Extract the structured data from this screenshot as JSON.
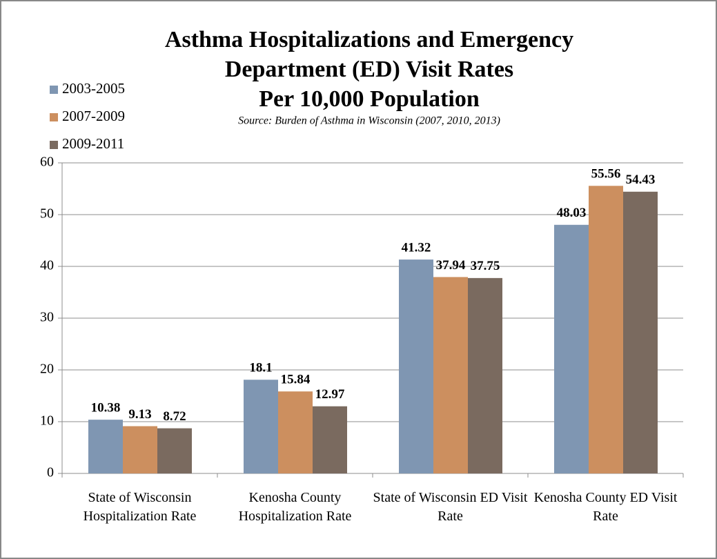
{
  "chart_data": {
    "type": "bar",
    "title": [
      "Asthma Hospitalizations and Emergency",
      "Department (ED) Visit Rates",
      "Per 10,000 Population"
    ],
    "subtitle": "Source: Burden of Asthma in Wisconsin (2007, 2010, 2013)",
    "categories": [
      "State of Wisconsin Hospitalization Rate",
      "Kenosha County Hospitalization Rate",
      "State of Wisconsin ED Visit Rate",
      "Kenosha County ED Visit Rate"
    ],
    "series": [
      {
        "name": "2003-2005",
        "color": "#7f96b2",
        "values": [
          10.38,
          18.1,
          41.32,
          48.03
        ]
      },
      {
        "name": "2007-2009",
        "color": "#cc8f5f",
        "values": [
          9.13,
          15.84,
          37.94,
          55.56
        ]
      },
      {
        "name": "2009-2011",
        "color": "#7a6a5f",
        "values": [
          8.72,
          12.97,
          37.75,
          54.43
        ]
      }
    ],
    "ylim": [
      0,
      60
    ],
    "yticks": [
      0,
      10,
      20,
      30,
      40,
      50,
      60
    ],
    "grid": true,
    "legend": "top-left"
  }
}
